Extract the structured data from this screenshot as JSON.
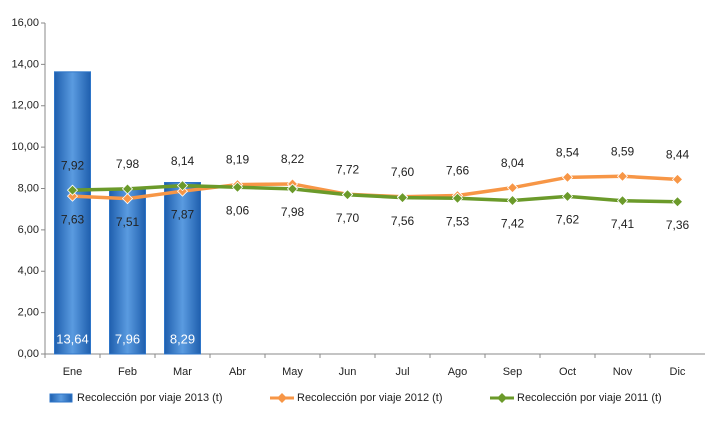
{
  "chart_data": {
    "type": "bar-line",
    "categories": [
      "Ene",
      "Feb",
      "Mar",
      "Abr",
      "May",
      "Jun",
      "Jul",
      "Ago",
      "Sep",
      "Oct",
      "Nov",
      "Dic"
    ],
    "series": [
      {
        "name": "Recolección por viaje 2013 (t)",
        "type": "bar",
        "color": "#2e75c8",
        "values": [
          13.64,
          7.96,
          8.29,
          null,
          null,
          null,
          null,
          null,
          null,
          null,
          null,
          null
        ],
        "value_labels": [
          "13,64",
          "7,96",
          "8,29",
          null,
          null,
          null,
          null,
          null,
          null,
          null,
          null,
          null
        ]
      },
      {
        "name": "Recolección por viaje 2012 (t)",
        "type": "line",
        "color": "#f79646",
        "values": [
          7.63,
          7.51,
          7.87,
          8.19,
          8.22,
          7.72,
          7.6,
          7.66,
          8.04,
          8.54,
          8.59,
          8.44
        ],
        "value_labels": [
          "7,63",
          "7,51",
          "7,87",
          "8,19",
          "8,22",
          "7,72",
          "7,60",
          "7,66",
          "8,04",
          "8,54",
          "8,59",
          "8,44"
        ]
      },
      {
        "name": "Recolección por viaje 2011 (t)",
        "type": "line",
        "color": "#6b9a2a",
        "values": [
          7.92,
          7.98,
          8.14,
          8.06,
          7.98,
          7.7,
          7.56,
          7.53,
          7.42,
          7.62,
          7.41,
          7.36
        ],
        "value_labels": [
          "7,92",
          "7,98",
          "8,14",
          "8,06",
          "7,98",
          "7,70",
          "7,56",
          "7,53",
          "7,42",
          "7,62",
          "7,41",
          "7,36"
        ]
      }
    ],
    "ylim": [
      0,
      16
    ],
    "yticks": [
      {
        "value": 0,
        "label": "0,00"
      },
      {
        "value": 2,
        "label": "2,00"
      },
      {
        "value": 4,
        "label": "4,00"
      },
      {
        "value": 6,
        "label": "6,00"
      },
      {
        "value": 8,
        "label": "8,00"
      },
      {
        "value": 10,
        "label": "10,00"
      },
      {
        "value": 12,
        "label": "12,00"
      },
      {
        "value": 14,
        "label": "14,00"
      },
      {
        "value": 16,
        "label": "16,00"
      }
    ],
    "grid": false,
    "legend": "bottom"
  }
}
